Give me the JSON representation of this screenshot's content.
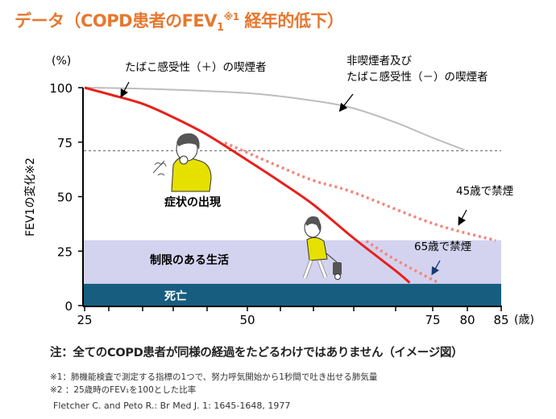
{
  "title": {
    "main": "データ（COPD患者のFEV",
    "sub": "1",
    "sup": "※1",
    "rest": " 経年的低下）"
  },
  "chart_data": {
    "type": "line",
    "ylabel": "FEV1の変化※2",
    "y_unit": "(%)",
    "x_unit": "(歳)",
    "xlim": [
      25,
      85
    ],
    "ylim": [
      0,
      100
    ],
    "x_tick_labels": [
      "25",
      "50",
      "75",
      "80",
      "85"
    ],
    "x_tick_values": [
      25,
      30,
      35,
      40,
      45,
      50,
      55,
      60,
      65,
      70,
      75,
      80,
      85
    ],
    "y_tick_labels": [
      "0",
      "25",
      "50",
      "75",
      "100"
    ],
    "reference_line": {
      "y": 71,
      "style": "dashed"
    },
    "bands": [
      {
        "label": "制限のある生活",
        "from": 10,
        "to": 30,
        "color": "#d3d3ef"
      },
      {
        "label": "死亡",
        "from": 0,
        "to": 10,
        "color": "#175d80"
      }
    ],
    "series": [
      {
        "name": "非喫煙者及び たばこ感受性（－）の喫煙者",
        "color": "#bdbdbd",
        "style": "solid",
        "x": [
          25,
          35,
          50,
          60,
          65,
          70,
          75,
          79.6
        ],
        "y": [
          100,
          99.5,
          97.5,
          94,
          90.5,
          84,
          77,
          71.4
        ]
      },
      {
        "name": "たばこ感受性（＋）の喫煙者",
        "color": "#e8201c",
        "style": "solid",
        "x": [
          25,
          30,
          35,
          40,
          45,
          50,
          55,
          60,
          65,
          70,
          71.9
        ],
        "y": [
          100,
          97,
          92.6,
          86.4,
          78.4,
          66.7,
          56.8,
          46.3,
          30.9,
          16,
          10.5
        ]
      },
      {
        "name": "45歳で禁煙",
        "color": "#f4857a",
        "style": "dotted",
        "x": [
          47.2,
          55,
          60,
          65,
          75,
          84.2
        ],
        "y": [
          74.7,
          63.6,
          57.4,
          51.9,
          37.7,
          29.9
        ]
      },
      {
        "name": "65歳で禁煙",
        "color": "#f4857a",
        "style": "dotted",
        "x": [
          66.5,
          70,
          75.8
        ],
        "y": [
          29.6,
          21,
          10.5
        ]
      }
    ],
    "annotations": [
      "症状の出現",
      "制限のある生活",
      "死亡"
    ]
  },
  "labels": {
    "smoker_plus": "たばこ感受性（＋）の喫煙者",
    "nonsmoker_l1": "非喫煙者及び",
    "nonsmoker_l2": "たばこ感受性（－）の喫煙者",
    "quit45": "45歳で禁煙",
    "quit65": "65歳で禁煙",
    "symptoms": "症状の出現",
    "limited": "制限のある生活",
    "death": "死亡"
  },
  "icons": [
    "coughing-man-illustration",
    "oxygen-walking-man-illustration"
  ],
  "note": "注：全てのCOPD患者が同様の経過をたどるわけではありません（イメージ図）",
  "footnotes": [
    "※1：肺機能検査で測定する指標の1つで、努力呼気開始から1秒間で吐き出せる肺気量",
    "※2 ：25歳時のFEV₁を100とした比率"
  ],
  "citation": "Fletcher C. and Peto R.: Br Med J. 1: 1645-1648, 1977"
}
